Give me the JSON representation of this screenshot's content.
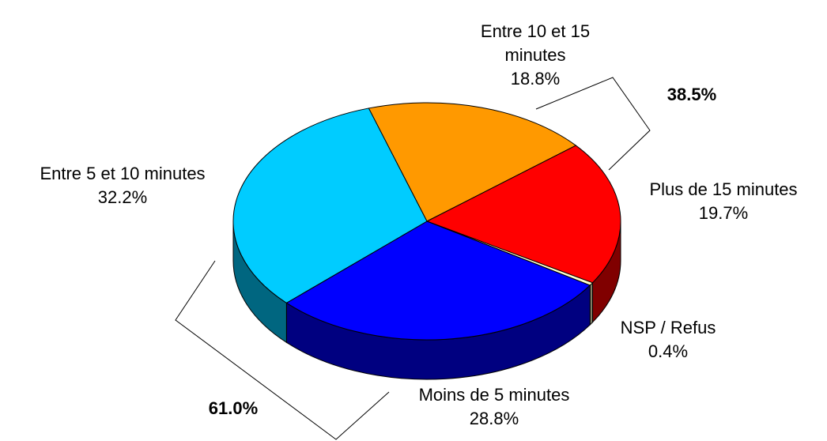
{
  "chart_data": {
    "type": "pie3d",
    "categories": [
      "Entre 10 et 15 minutes",
      "Plus de 15 minutes",
      "NSP / Refus",
      "Moins de 5 minutes",
      "Entre 5 et 10 minutes"
    ],
    "values": [
      18.8,
      19.7,
      0.4,
      28.8,
      32.2
    ],
    "value_labels": [
      "18.8%",
      "19.7%",
      "0.4%",
      "28.8%",
      "32.2%"
    ],
    "colors": [
      "#ff9900",
      "#ff0000",
      "#ffffcc",
      "#0000ff",
      "#00ccff"
    ],
    "annotations": [
      "38.5%",
      "61.0%"
    ]
  }
}
